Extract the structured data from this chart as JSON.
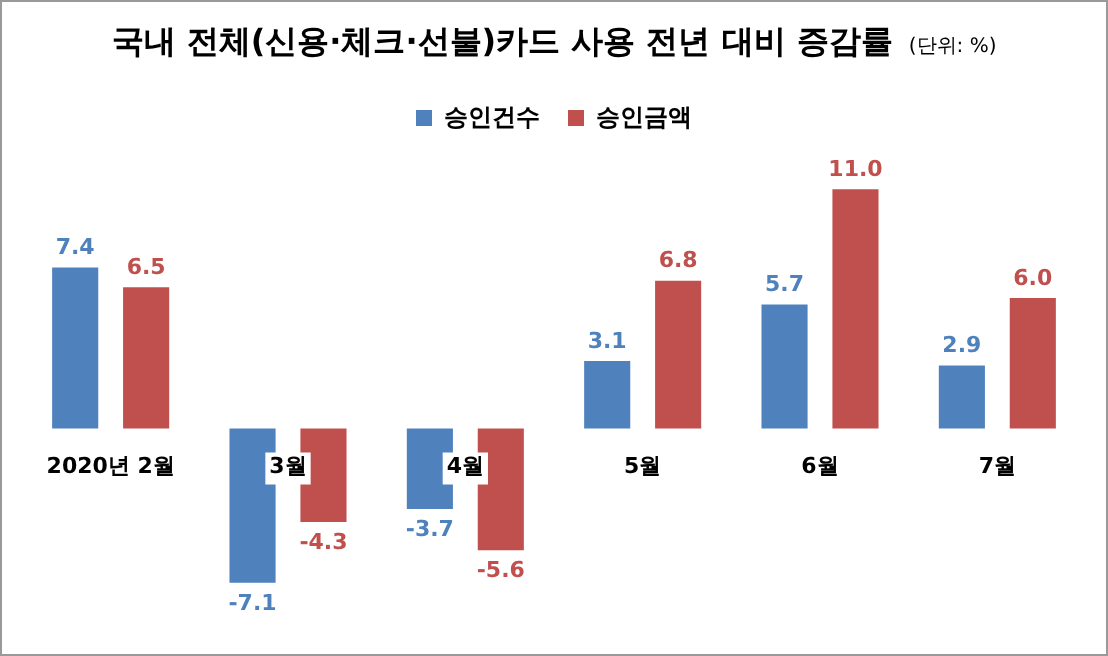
{
  "chart_data": {
    "type": "bar",
    "title": "국내 전체(신용·체크·선불)카드 사용 전년 대비 증감률",
    "annotations": [
      "(단위: %)"
    ],
    "categories": [
      "2020년 2월",
      "3월",
      "4월",
      "5월",
      "6월",
      "7월"
    ],
    "series": [
      {
        "name": "승인건수",
        "color": "#4f81bd",
        "values": [
          7.4,
          -7.1,
          -3.7,
          3.1,
          5.7,
          2.9
        ],
        "value_labels": [
          "7.4",
          "-7.1",
          "-3.7",
          "3.1",
          "5.7",
          "2.9"
        ]
      },
      {
        "name": "승인금액",
        "color": "#c0504d",
        "values": [
          6.5,
          -4.3,
          -5.6,
          6.8,
          11.0,
          6.0
        ],
        "value_labels": [
          "6.5",
          "-4.3",
          "-5.6",
          "6.8",
          "11.0",
          "6.0"
        ]
      }
    ],
    "legend": "top",
    "grid": false
  }
}
